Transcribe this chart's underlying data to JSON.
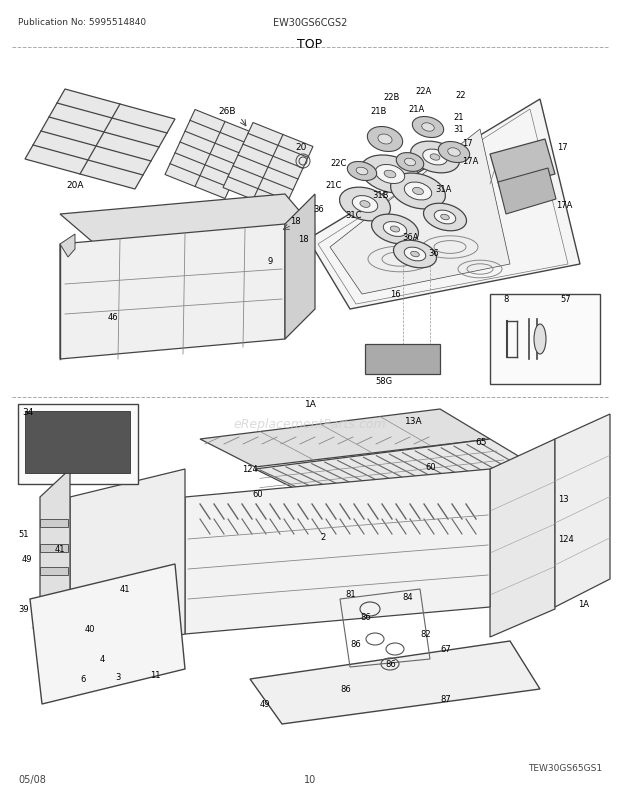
{
  "title": "TOP",
  "pub_no": "Publication No: 5995514840",
  "model": "EW30GS6CGS2",
  "footer_left": "05/08",
  "footer_center": "10",
  "footer_right": "TEW30GS65GS1",
  "watermark": "eReplacementParts.com",
  "bg_color": "#ffffff",
  "lc": "#444444",
  "lgray": "#aaaaaa",
  "dgray": "#555555"
}
